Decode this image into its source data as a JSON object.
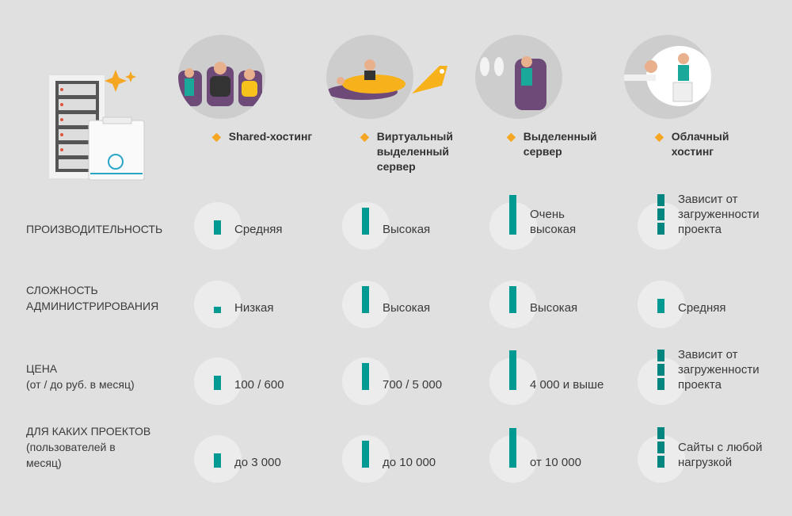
{
  "columns": [
    {
      "title": "Shared-хостинг",
      "illustration": "three-people-in-seats"
    },
    {
      "title": "Виртуальный выделенный сервер",
      "illustration": "people-on-airplane"
    },
    {
      "title": "Выделенный сервер",
      "illustration": "woman-in-first-class-seat"
    },
    {
      "title": "Облачный хостинг",
      "illustration": "people-in-cloud"
    }
  ],
  "rows": [
    {
      "label": "ПРОИЗВОДИТЕЛЬНОСТЬ",
      "sublabel": "",
      "cells": [
        {
          "text": "Средняя",
          "level": 2
        },
        {
          "text": "Высокая",
          "level": 3
        },
        {
          "text": "Очень высокая",
          "level": 4
        },
        {
          "text": "Зависит от загруженности проекта",
          "level": "variable"
        }
      ]
    },
    {
      "label": "СЛОЖНОСТЬ АДМИНИСТРИРОВАНИЯ",
      "sublabel": "",
      "cells": [
        {
          "text": "Низкая",
          "level": 1
        },
        {
          "text": "Высокая",
          "level": 3
        },
        {
          "text": "Высокая",
          "level": 3
        },
        {
          "text": "Средняя",
          "level": 2
        }
      ]
    },
    {
      "label": "ЦЕНА",
      "sublabel": "(от / до руб. в месяц)",
      "cells": [
        {
          "text": "100 / 600",
          "level": 2
        },
        {
          "text": "700 / 5 000",
          "level": 3
        },
        {
          "text": "4 000 и выше",
          "level": 4
        },
        {
          "text": "Зависит от загруженности проекта",
          "level": "variable"
        }
      ]
    },
    {
      "label": "ДЛЯ КАКИХ ПРОЕКТОВ",
      "sublabel": "(пользователей в месяц)",
      "cells": [
        {
          "text": "до 3 000",
          "level": 2
        },
        {
          "text": "до 10 000",
          "level": 3
        },
        {
          "text": "от 10 000",
          "level": 4
        },
        {
          "text": "Сайты с любой нагрузкой",
          "level": "variable"
        }
      ]
    }
  ],
  "colors": {
    "bar": "#009a92",
    "star": "#f5a623",
    "background": "#e0e0e0"
  }
}
